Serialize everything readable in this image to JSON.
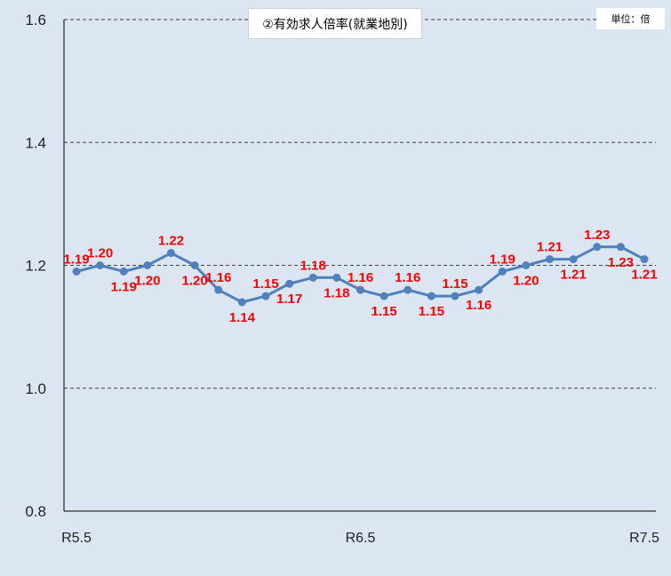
{
  "chart_data": {
    "type": "line",
    "title": "②有効求人倍率(就業地別)",
    "unit": "単位：倍",
    "xlabel": "",
    "ylabel": "",
    "ylim": [
      0.8,
      1.6
    ],
    "yticks": [
      "1.6",
      "1.4",
      "1.2",
      "1.0",
      "0.8"
    ],
    "xticks": [
      "R5.5",
      "R6.5",
      "R7.5"
    ],
    "grid": true,
    "colors": {
      "line": "#4f81bd",
      "label": "#ff0000",
      "plot_bg": "#dce6f2",
      "grid": "#404040"
    },
    "series": [
      {
        "values": [
          1.19,
          1.2,
          1.19,
          1.2,
          1.22,
          1.2,
          1.16,
          1.14,
          1.15,
          1.17,
          1.18,
          1.18,
          1.16,
          1.15,
          1.16,
          1.15,
          1.15,
          1.16,
          1.19,
          1.2,
          1.21,
          1.21,
          1.23,
          1.23,
          1.21
        ],
        "labels": [
          "1.19",
          "1.20",
          "1.19",
          "1.20",
          "1.22",
          "1.20",
          "1.16",
          "1.14",
          "1.15",
          "1.17",
          "1.18",
          "1.18",
          "1.16",
          "1.15",
          "1.16",
          "1.15",
          "1.15",
          "1.16",
          "1.19",
          "1.20",
          "1.21",
          "1.21",
          "1.23",
          "1.23",
          "1.21"
        ]
      }
    ]
  }
}
